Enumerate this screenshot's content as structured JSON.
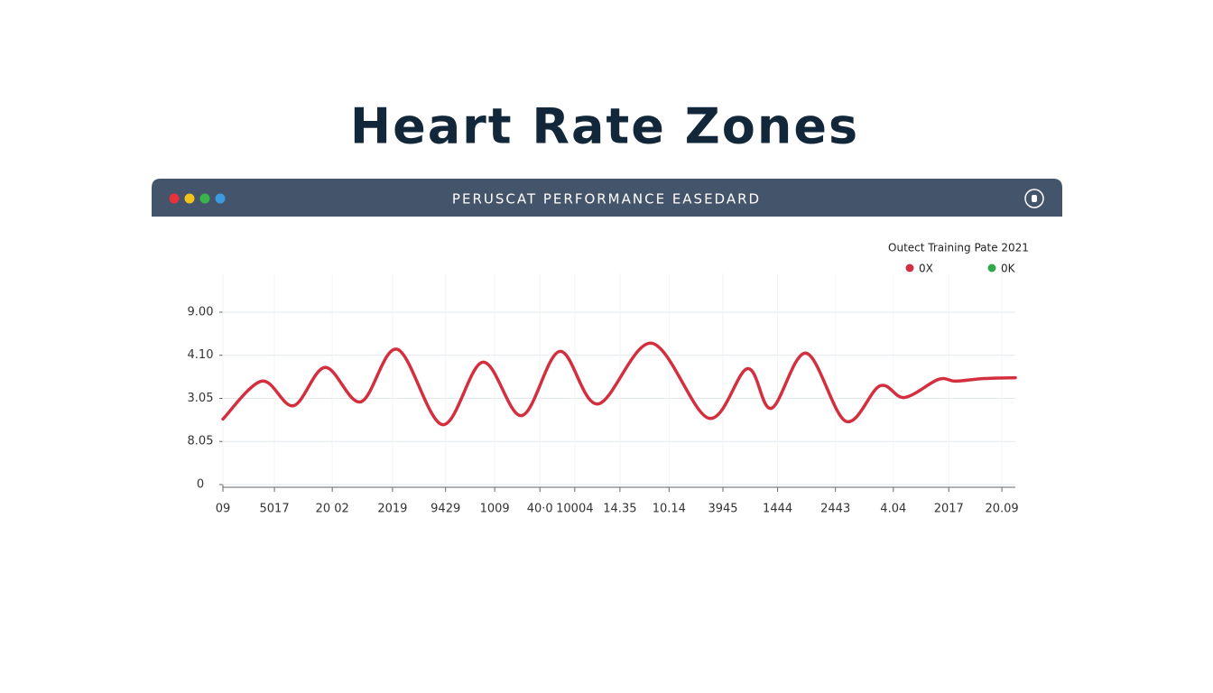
{
  "header": {
    "title": "Heart Rate Zones"
  },
  "window": {
    "title": "PERUSCAT PERFORMANCE EASEDARD"
  },
  "chart_data": {
    "type": "line",
    "legend_title": "Outect Training Pate 2021",
    "legend_extra": [
      {
        "name": "0K",
        "color": "#2eaa4a"
      }
    ],
    "x": [
      0,
      4.9,
      8.9,
      12.9,
      17.4,
      22.0,
      27.7,
      32.8,
      37.7,
      42.5,
      47.3,
      54.1,
      61.3,
      66.2,
      69.2,
      73.6,
      78.6,
      82.9,
      86.0,
      90.3,
      92.5,
      96.0,
      100
    ],
    "series": [
      {
        "name": "0X",
        "color": "#d32f3f",
        "values": [
          1.52,
          2.4,
          1.83,
          2.72,
          1.92,
          3.14,
          1.39,
          2.84,
          1.6,
          3.09,
          1.87,
          3.28,
          1.54,
          2.69,
          1.77,
          3.05,
          1.47,
          2.29,
          2.02,
          2.44,
          2.4,
          2.46,
          2.48
        ]
      }
    ],
    "xlim": [
      0,
      100
    ],
    "xticks": [
      {
        "value": 0,
        "label": "09"
      },
      {
        "value": 6.5,
        "label": "5017"
      },
      {
        "value": 13.8,
        "label": "20 02"
      },
      {
        "value": 21.4,
        "label": "2019"
      },
      {
        "value": 28.1,
        "label": "9429"
      },
      {
        "value": 34.3,
        "label": "1009"
      },
      {
        "value": 40,
        "label": "40·0"
      },
      {
        "value": 44.4,
        "label": "10004"
      },
      {
        "value": 50.1,
        "label": "14.35"
      },
      {
        "value": 56.3,
        "label": "10.14"
      },
      {
        "value": 63.1,
        "label": "3945"
      },
      {
        "value": 70,
        "label": "1444"
      },
      {
        "value": 77.3,
        "label": "2443"
      },
      {
        "value": 84.6,
        "label": "4.04"
      },
      {
        "value": 91.6,
        "label": "2017"
      },
      {
        "value": 98.3,
        "label": "20.09"
      }
    ],
    "ylim": [
      0,
      4.9
    ],
    "yticks": [
      0,
      {
        "value": 1,
        "label": "8.05"
      },
      {
        "value": 2,
        "label": "3.05"
      },
      {
        "value": 3,
        "label": "4.10"
      },
      {
        "value": 4,
        "label": "9.00"
      }
    ],
    "grid": true
  }
}
